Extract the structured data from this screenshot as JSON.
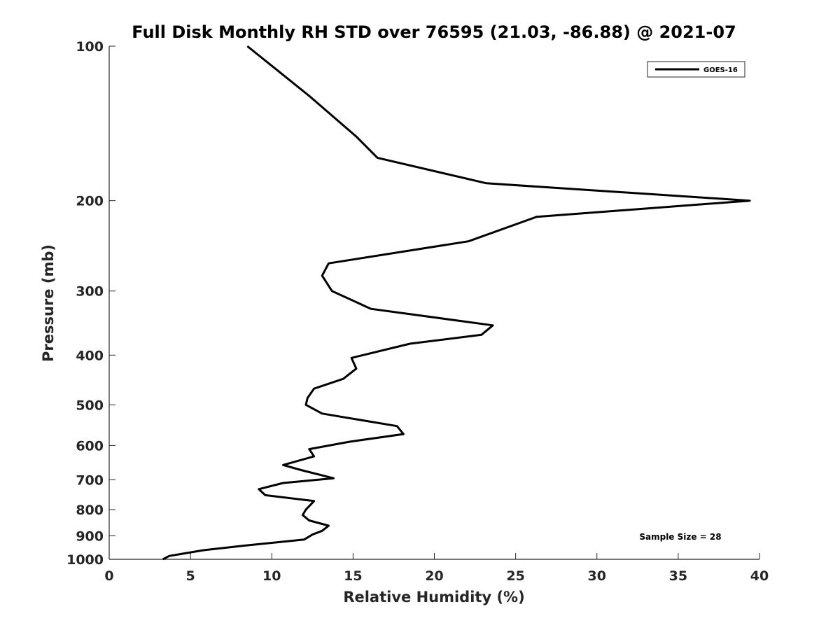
{
  "chart_data": {
    "type": "line",
    "title": "Full Disk Monthly RH STD over 76595 (21.03, -86.88) @ 2021-07",
    "xlabel": "Relative Humidity (%)",
    "ylabel": "Pressure (mb)",
    "xlim": [
      0,
      40
    ],
    "ylim": [
      100,
      1000
    ],
    "y_scale": "log",
    "y_reversed": true,
    "xticks": [
      0,
      5,
      10,
      15,
      20,
      25,
      30,
      35,
      40
    ],
    "xtick_labels": [
      "0",
      "5",
      "10",
      "15",
      "20",
      "25",
      "30",
      "35",
      "40"
    ],
    "yticks": [
      100,
      200,
      300,
      400,
      500,
      600,
      700,
      800,
      900,
      1000
    ],
    "ytick_labels": [
      "100",
      "200",
      "300",
      "400",
      "500",
      "600",
      "700",
      "800",
      "900",
      "1000"
    ],
    "grid": false,
    "legend_position": "top-right",
    "line_color": "#000000",
    "series": [
      {
        "name": "GOES-16",
        "x": [
          8.5,
          12.3,
          15.2,
          16.5,
          23.2,
          39.4,
          26.3,
          22.1,
          13.5,
          13.1,
          13.7,
          16.1,
          23.6,
          22.9,
          18.5,
          14.9,
          15.2,
          14.4,
          12.6,
          12.2,
          12.1,
          13.1,
          17.7,
          18.1,
          14.8,
          12.3,
          12.6,
          10.7,
          11.8,
          13.8,
          10.7,
          9.2,
          9.6,
          12.6,
          12.1,
          11.9,
          12.3,
          13.5,
          13.1,
          12.5,
          12.0,
          8.4,
          5.8,
          3.7,
          3.3
        ],
        "y": [
          100,
          125,
          150,
          165,
          185,
          200,
          215,
          240,
          265,
          280,
          300,
          325,
          350,
          365,
          380,
          405,
          425,
          445,
          465,
          485,
          500,
          520,
          550,
          570,
          590,
          610,
          630,
          655,
          670,
          695,
          710,
          730,
          750,
          770,
          800,
          820,
          840,
          860,
          880,
          895,
          915,
          940,
          960,
          985,
          1000
        ]
      }
    ],
    "annotation": "Sample Size = 28"
  }
}
